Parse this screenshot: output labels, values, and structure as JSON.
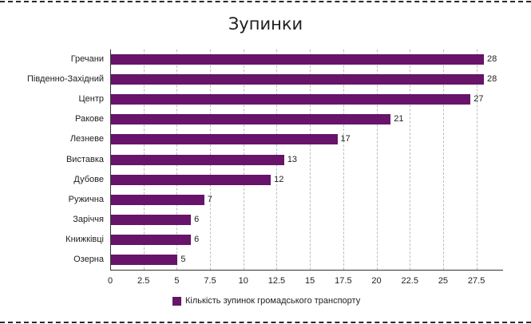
{
  "chart_data": {
    "type": "bar",
    "orientation": "horizontal",
    "title": "Зупинки",
    "xlabel": "",
    "ylabel": "",
    "categories": [
      "Гречани",
      "Південно-Західний",
      "Центр",
      "Ракове",
      "Лезневе",
      "Виставка",
      "Дубове",
      "Ружична",
      "Заріччя",
      "Книжківці",
      "Озерна"
    ],
    "series": [
      {
        "name": "Кількість зупинок громадського транспорту",
        "values": [
          28,
          28,
          27,
          21,
          17,
          13,
          12,
          7,
          6,
          6,
          5
        ],
        "color": "#67146a"
      }
    ],
    "xlim": [
      0,
      29.5
    ],
    "x_ticks": [
      "0",
      "2.5",
      "5",
      "7.5",
      "10",
      "12.5",
      "15",
      "17.5",
      "20",
      "22.5",
      "25",
      "27.5"
    ],
    "grid": "vertical dashed",
    "legend_position": "bottom",
    "data_labels": true
  },
  "colors": {
    "bar": "#67146a",
    "grid": "#bdbdbd",
    "axis": "#333333",
    "border_dash": "#2a2a2a"
  }
}
